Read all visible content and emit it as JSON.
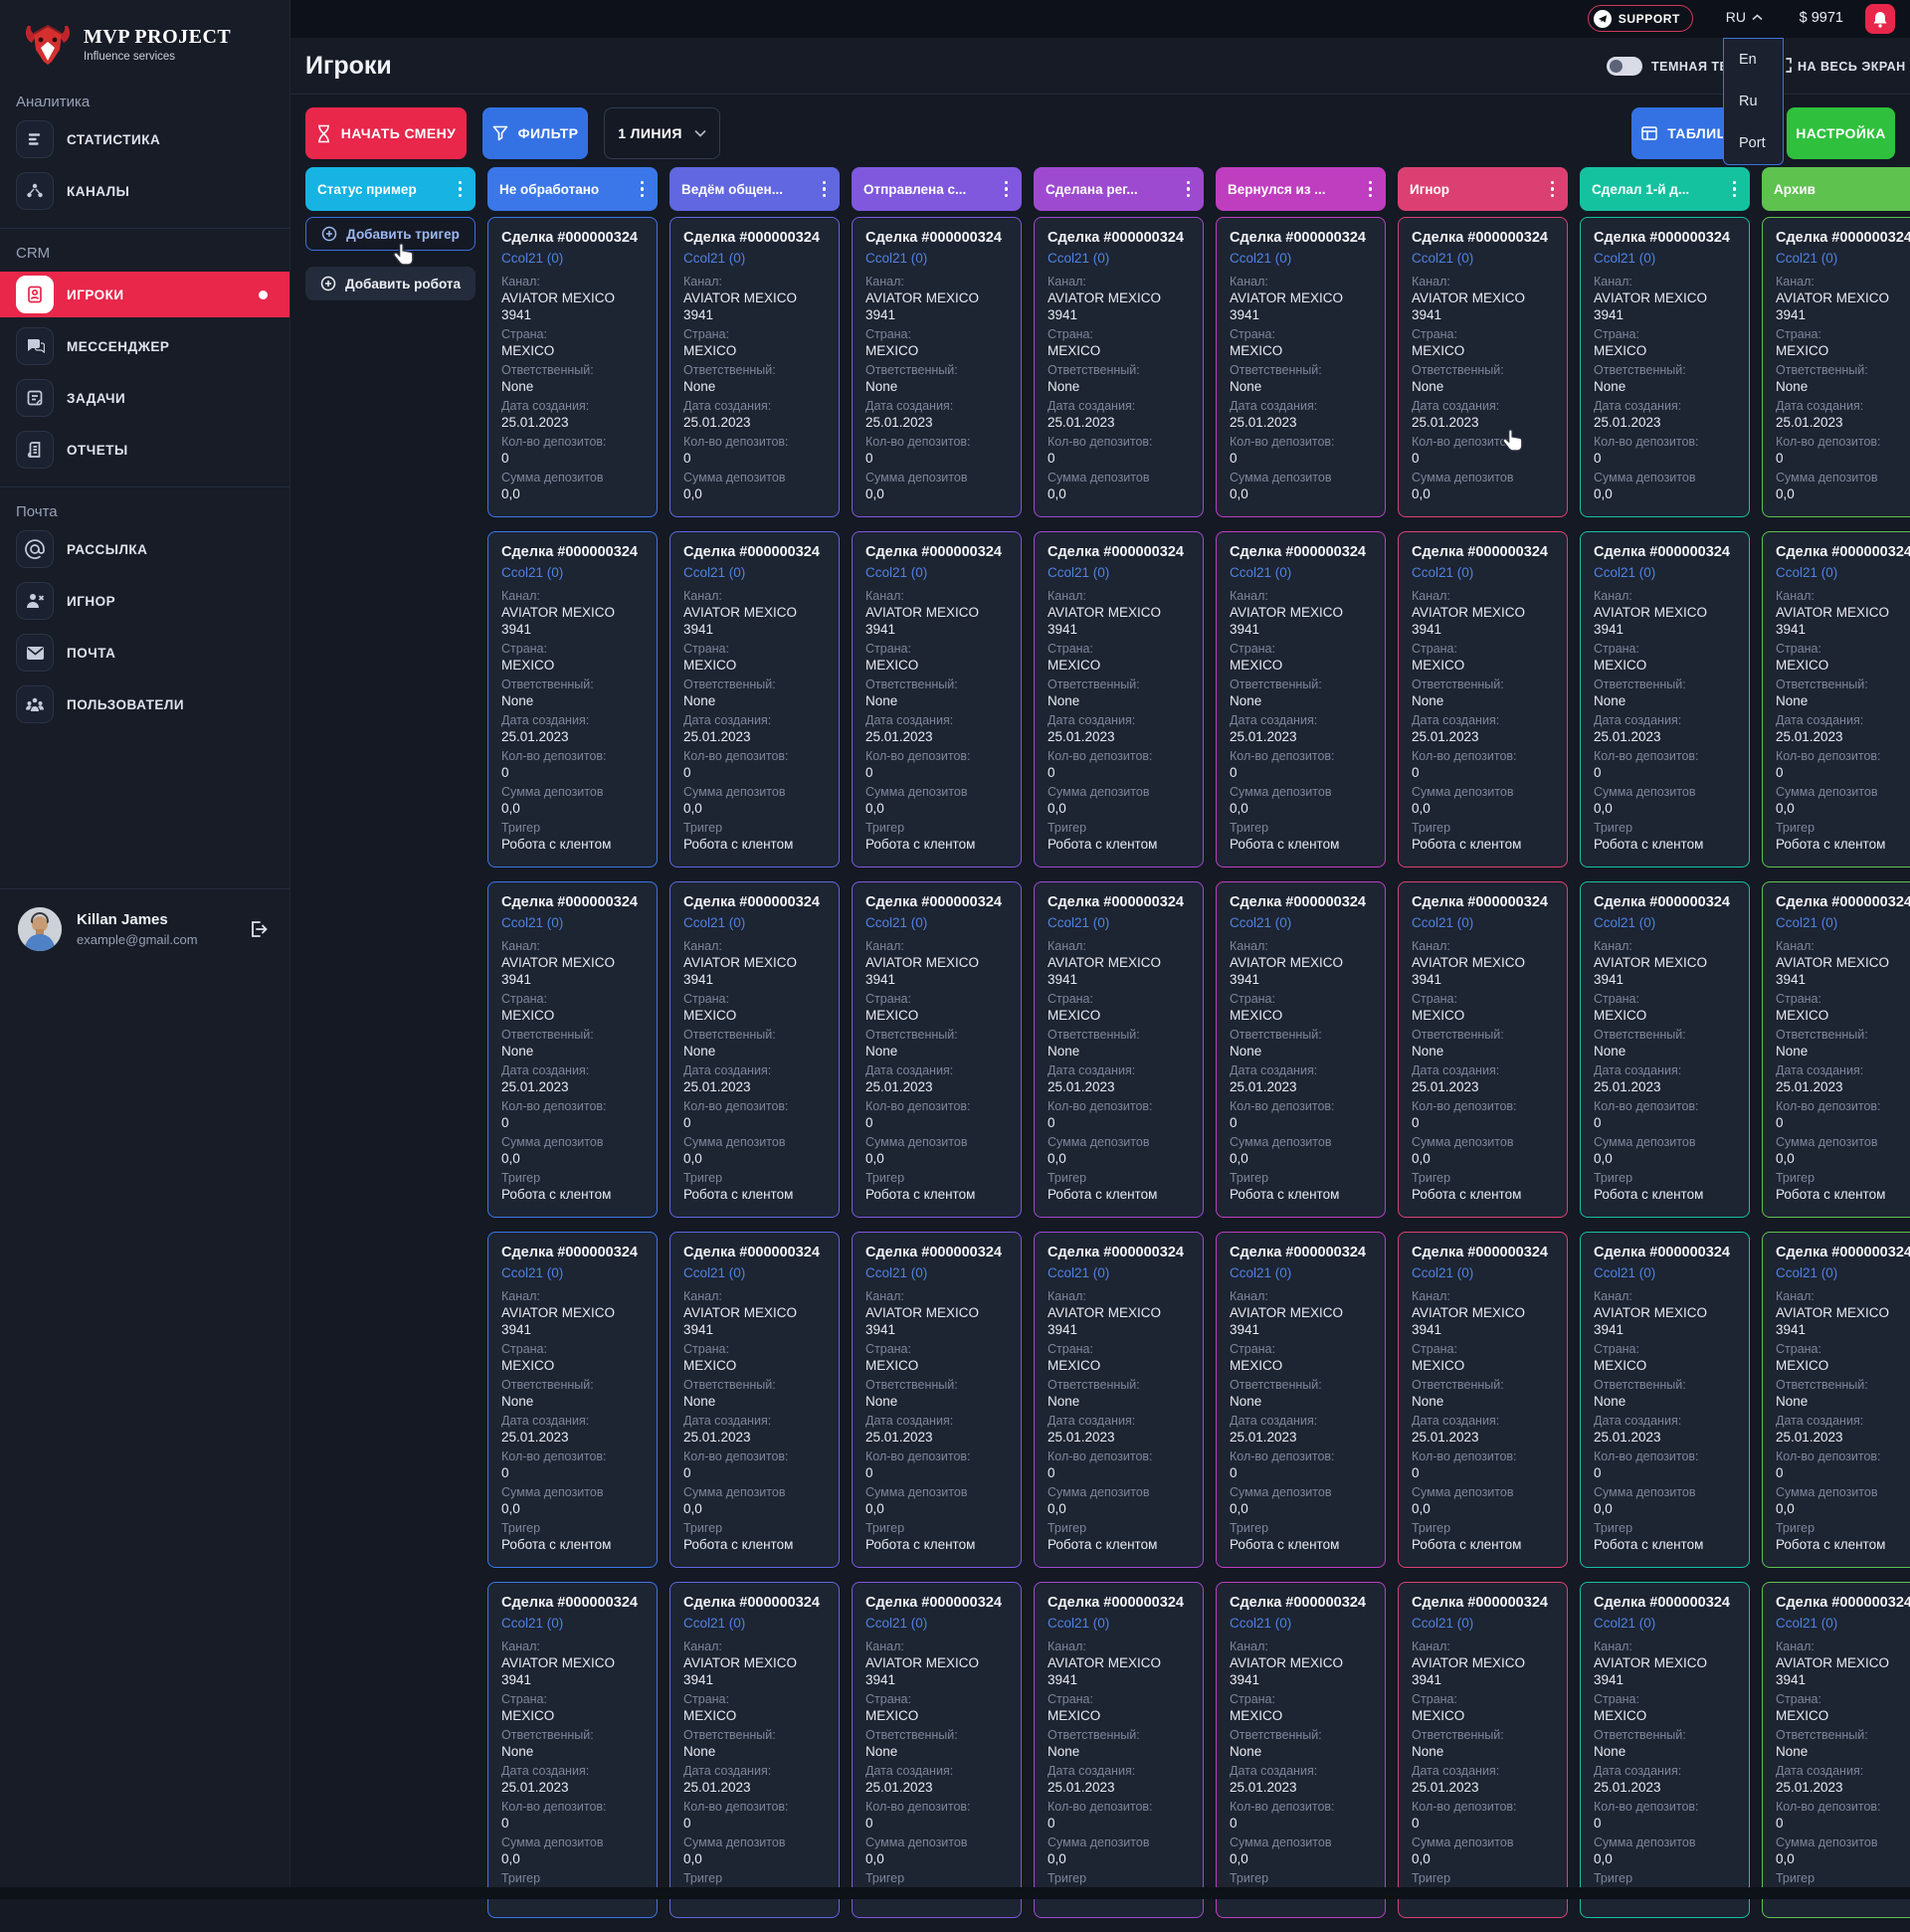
{
  "logo": {
    "title": "MVP PROJECT",
    "subtitle": "Influence services"
  },
  "topbar": {
    "support_label": "SUPPORT",
    "language": "RU",
    "balance": "$ 9971",
    "language_menu": [
      "En",
      "Ru",
      "Port"
    ]
  },
  "sidebar": {
    "sections": [
      {
        "title": "Аналитика",
        "items": [
          {
            "label": "СТАТИСТИКА",
            "icon": "stats-icon",
            "active": false
          },
          {
            "label": "КАНАЛЫ",
            "icon": "channels-icon",
            "active": false
          }
        ]
      },
      {
        "title": "CRM",
        "items": [
          {
            "label": "ИГРОКИ",
            "icon": "players-icon",
            "active": true
          },
          {
            "label": "МЕССЕНДЖЕР",
            "icon": "messenger-icon",
            "active": false
          },
          {
            "label": "ЗАДАЧИ",
            "icon": "tasks-icon",
            "active": false
          },
          {
            "label": "ОТЧЕТЫ",
            "icon": "reports-icon",
            "active": false
          }
        ]
      },
      {
        "title": "Почта",
        "items": [
          {
            "label": "РАССЫЛКА",
            "icon": "mailing-icon",
            "active": false
          },
          {
            "label": "ИГНОР",
            "icon": "ignore-icon",
            "active": false
          },
          {
            "label": "ПОЧТА",
            "icon": "mail-icon",
            "active": false
          },
          {
            "label": "ПОЛЬЗОВАТЕЛИ",
            "icon": "users-icon",
            "active": false
          }
        ]
      }
    ],
    "user": {
      "name": "Killan James",
      "email": "example@gmail.com"
    }
  },
  "header": {
    "title": "Игроки",
    "theme_toggle_label": "ТЕМНАЯ ТЕМА",
    "fullscreen_label": "НА ВЕСЬ ЭКРАН"
  },
  "toolbar": {
    "start_shift": "НАЧАТЬ СМЕНУ",
    "filter": "ФИЛЬТР",
    "line": "1 ЛИНИЯ",
    "table": "ТАБЛИЦА",
    "settings": "НАСТРОЙКА"
  },
  "board": {
    "columns": [
      {
        "label": "Статус пример",
        "color": "#16b3e3"
      },
      {
        "label": "Не обработано",
        "color": "#3b77e8"
      },
      {
        "label": "Ведём общен...",
        "color": "#6067e0"
      },
      {
        "label": "Отправлена с...",
        "color": "#7f58de"
      },
      {
        "label": "Сделана рег...",
        "color": "#9e4ad0"
      },
      {
        "label": "Вернулся из ...",
        "color": "#bf3ec0"
      },
      {
        "label": "Игнор",
        "color": "#dc4073"
      },
      {
        "label": "Сделал 1-й д...",
        "color": "#15c2a0"
      },
      {
        "label": "Архив",
        "color": "#5ec24f"
      }
    ],
    "first_column_buttons": [
      "Добавить тригер",
      "Добавить робота"
    ],
    "rows_per_column": 5,
    "card": {
      "title": "Сделка #000000324",
      "link": "Ccol21 (0)",
      "fields": [
        [
          "Канал:",
          "AVIATOR MEXICO 3941"
        ],
        [
          "Страна:",
          "MEXICO"
        ],
        [
          "Ответственный:",
          "None"
        ],
        [
          "Дата создания:",
          "25.01.2023"
        ],
        [
          "Кол-во депозитов:",
          "0"
        ],
        [
          "Сумма депозитов",
          "0,0"
        ]
      ],
      "trigger_field": [
        "Тригер",
        "Робота с клентом"
      ],
      "first_row_has_trigger": false
    }
  },
  "colors": {
    "accent_red": "#e8274b",
    "accent_blue": "#3472e4",
    "accent_green": "#2fc13e",
    "link_blue": "#5082e0"
  }
}
